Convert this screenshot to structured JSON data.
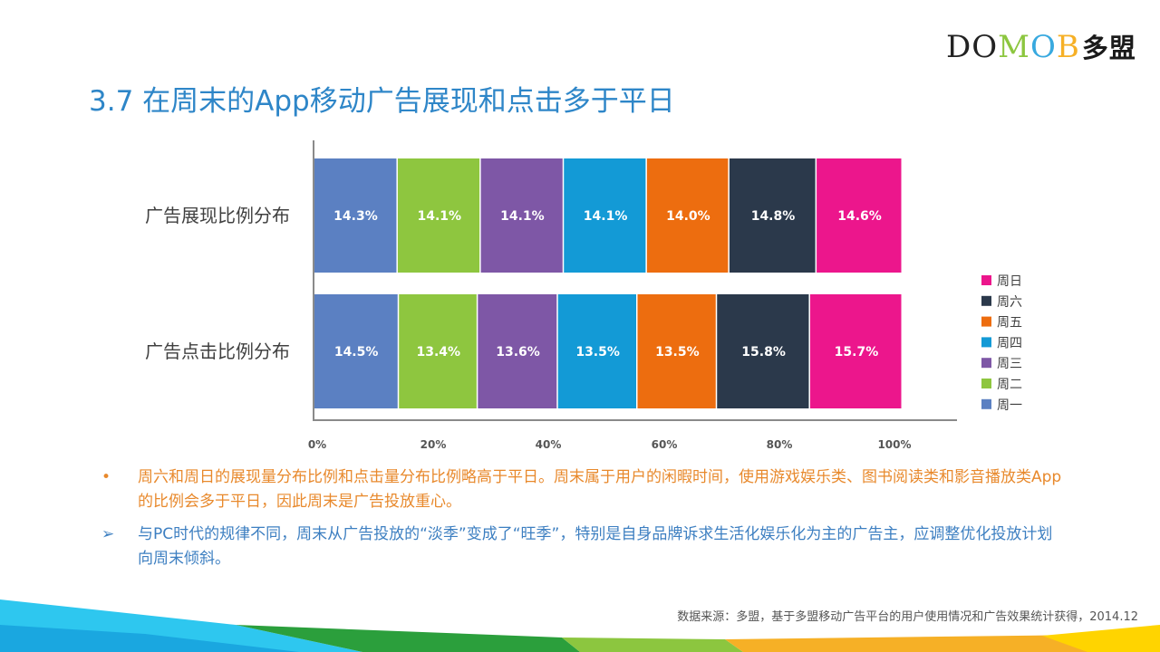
{
  "logo": {
    "letters": [
      "D",
      "O",
      "M",
      "O",
      "B"
    ],
    "colors": [
      "#222222",
      "#222222",
      "#8cc63f",
      "#38a9df",
      "#f6b026"
    ],
    "cn": "多盟"
  },
  "title": "3.7 在周末的App移动广告展现和点击多于平日",
  "chart_data": {
    "type": "bar",
    "orientation": "horizontal",
    "stacked": true,
    "percent": true,
    "categories": [
      "广告展现比例分布",
      "广告点击比例分布"
    ],
    "series": [
      {
        "name": "周一",
        "color": "#5b80c2",
        "values": [
          14.3,
          14.5
        ],
        "labels": [
          "14.3%",
          "14.5%"
        ]
      },
      {
        "name": "周二",
        "color": "#8ec63f",
        "values": [
          14.1,
          13.4
        ],
        "labels": [
          "14.1%",
          "13.4%"
        ]
      },
      {
        "name": "周三",
        "color": "#7e57a6",
        "values": [
          14.1,
          13.6
        ],
        "labels": [
          "14.1%",
          "13.6%"
        ]
      },
      {
        "name": "周四",
        "color": "#139ad6",
        "values": [
          14.1,
          13.5
        ],
        "labels": [
          "14.1%",
          "13.5%"
        ]
      },
      {
        "name": "周五",
        "color": "#ed6d0f",
        "values": [
          14.0,
          13.5
        ],
        "labels": [
          "14.0%",
          "13.5%"
        ]
      },
      {
        "name": "周六",
        "color": "#2b394b",
        "values": [
          14.8,
          15.8
        ],
        "labels": [
          "14.8%",
          "15.8%"
        ]
      },
      {
        "name": "周日",
        "color": "#ec168c",
        "values": [
          14.6,
          15.7
        ],
        "labels": [
          "14.6%",
          "15.7%"
        ]
      }
    ],
    "xlim": [
      0,
      100
    ],
    "xticks": [
      "0%",
      "20%",
      "40%",
      "60%",
      "80%",
      "100%"
    ],
    "legend": "right",
    "grid": false
  },
  "bullets": [
    {
      "mark": "•",
      "text": "周六和周日的展现量分布比例和点击量分布比例略高于平日。周末属于用户的闲暇时间，使用游戏娱乐类、图书阅读类和影音播放类App的比例会多于平日，因此周末是广告投放重心。"
    },
    {
      "mark": "➢",
      "text": "与PC时代的规律不同，周末从广告投放的“淡季”变成了“旺季”，特别是自身品牌诉求生活化娱乐化为主的广告主，应调整优化投放计划向周末倾斜。"
    }
  ],
  "source": "数据来源：多盟，基于多盟移动广告平台的用户使用情况和广告效果统计获得，2014.12",
  "decor_colors": [
    "#2ec7ef",
    "#1aa7e0",
    "#2b9f3c",
    "#8cc63f",
    "#f6b026",
    "#ffd400"
  ]
}
